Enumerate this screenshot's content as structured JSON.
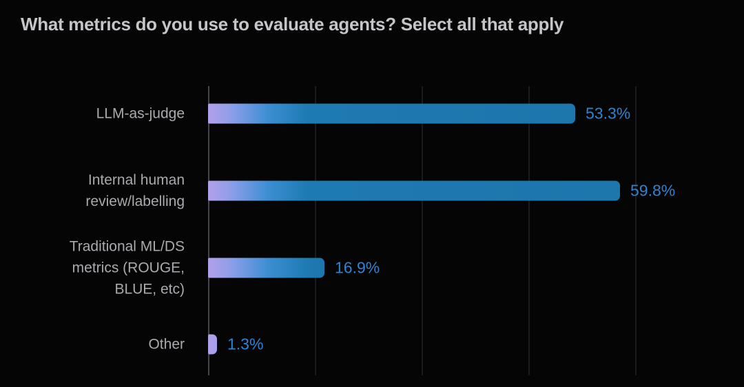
{
  "header": {
    "title": "What metrics do you use to evaluate agents? Select all that apply"
  },
  "chart_data": {
    "type": "bar",
    "orientation": "horizontal",
    "title": "What metrics do you use to evaluate agents? Select all that apply",
    "categories": [
      "LLM-as-judge",
      "Internal human review/labelling",
      "Traditional ML/DS metrics (ROUGE, BLUE, etc)",
      "Other"
    ],
    "category_lines": [
      [
        "LLM-as-judge"
      ],
      [
        "Internal human",
        "review/labelling"
      ],
      [
        "Traditional ML/DS",
        "metrics (ROUGE,",
        "BLUE, etc)"
      ],
      [
        "Other"
      ]
    ],
    "values": [
      53.3,
      59.8,
      16.9,
      1.3
    ],
    "value_labels": [
      "53.3%",
      "59.8%",
      "16.9%",
      "1.3%"
    ],
    "xlabel": "",
    "ylabel": "",
    "xlim": [
      0,
      65
    ],
    "grid": "vertical-only",
    "axis_tick_labels": "none",
    "legend": "none",
    "colors": {
      "bar_gradient_start": "#b3a0ec",
      "bar_gradient_mid": "#3b8ed2",
      "bar_gradient_end": "#1d76ac",
      "value_label": "#2f83d3",
      "category_label": "#aba9ad",
      "title": "#c6c4c8",
      "axis_line": "#46464c",
      "gridline": "#1b1b1f",
      "background": "#050506"
    }
  }
}
